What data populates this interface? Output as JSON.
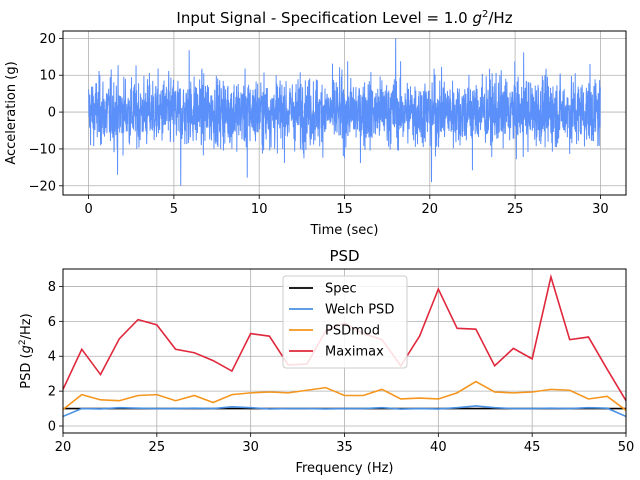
{
  "chart_data": [
    {
      "type": "line",
      "title_main": "Input Signal - Specification Level = 1.0 ",
      "title_unit_base": "g",
      "title_unit_exp": "2",
      "title_unit_tail": "/Hz",
      "xlabel": "Time (sec)",
      "ylabel": "Acceleration (g)",
      "xlim": [
        -1.5,
        31.5
      ],
      "ylim": [
        -22.5,
        22.0
      ],
      "xticks": [
        0,
        5,
        10,
        15,
        20,
        25,
        30
      ],
      "yticks": [
        -20,
        -10,
        0,
        10,
        20
      ],
      "grid": true,
      "color": "#5b8ff9",
      "series": [
        {
          "description": "random vibration time history, 0 to 30 s, mostly within about ±12 g with peaks near ±20 g",
          "x_range": [
            0,
            30
          ],
          "approx_envelope": 12,
          "peaks": [
            {
              "x": 5.4,
              "y": -20.0
            },
            {
              "x": 18.0,
              "y": 20.0
            },
            {
              "x": 20.1,
              "y": -19.0
            },
            {
              "x": 9.3,
              "y": -17.8
            },
            {
              "x": 1.7,
              "y": -17.0
            },
            {
              "x": 5.9,
              "y": 16.8
            },
            {
              "x": 25.5,
              "y": 16.2
            },
            {
              "x": 22.5,
              "y": -15.8
            }
          ]
        }
      ]
    },
    {
      "type": "line",
      "title": "PSD",
      "xlabel": "Frequency (Hz)",
      "ylabel_main": "PSD (",
      "ylabel_base": "g",
      "ylabel_exp": "2",
      "ylabel_tail": "/Hz)",
      "xlim": [
        20,
        50
      ],
      "ylim": [
        -0.4,
        9.0
      ],
      "xticks": [
        20,
        25,
        30,
        35,
        40,
        45,
        50
      ],
      "yticks": [
        0,
        2,
        4,
        6,
        8
      ],
      "grid": true,
      "legend_position": "top-center",
      "x": [
        20,
        21,
        22,
        23,
        24,
        25,
        26,
        27,
        28,
        29,
        30,
        31,
        32,
        33,
        34,
        35,
        36,
        37,
        38,
        39,
        40,
        41,
        42,
        43,
        44,
        45,
        46,
        47,
        48,
        49,
        50
      ],
      "series": [
        {
          "name": "Spec",
          "color": "#000000",
          "values": [
            1.0,
            1.0,
            1.0,
            1.0,
            1.0,
            1.0,
            1.0,
            1.0,
            1.0,
            1.0,
            1.0,
            1.0,
            1.0,
            1.0,
            1.0,
            1.0,
            1.0,
            1.0,
            1.0,
            1.0,
            1.0,
            1.0,
            1.0,
            1.0,
            1.0,
            1.0,
            1.0,
            1.0,
            1.0,
            1.0,
            1.0
          ]
        },
        {
          "name": "Welch PSD",
          "color": "#4a90e2",
          "values": [
            0.55,
            1.0,
            0.98,
            1.05,
            1.02,
            1.0,
            1.0,
            1.02,
            1.0,
            1.1,
            1.05,
            0.98,
            1.0,
            1.0,
            0.98,
            1.0,
            1.0,
            1.05,
            0.97,
            1.0,
            0.98,
            1.05,
            1.15,
            1.05,
            1.0,
            1.0,
            1.02,
            1.0,
            1.05,
            1.02,
            0.55
          ]
        },
        {
          "name": "PSDmod",
          "color": "#f5961e",
          "values": [
            0.95,
            1.8,
            1.5,
            1.45,
            1.75,
            1.8,
            1.45,
            1.75,
            1.35,
            1.8,
            1.9,
            1.95,
            1.9,
            2.05,
            2.2,
            1.75,
            1.75,
            2.1,
            1.55,
            1.6,
            1.55,
            1.9,
            2.55,
            1.95,
            1.9,
            1.95,
            2.1,
            2.05,
            1.55,
            1.7,
            0.9
          ]
        },
        {
          "name": "Maximax",
          "color": "#e0283c",
          "values": [
            2.1,
            4.4,
            2.95,
            5.0,
            6.1,
            5.8,
            4.4,
            4.2,
            3.75,
            3.15,
            5.3,
            5.15,
            3.5,
            3.55,
            5.45,
            5.9,
            5.3,
            4.95,
            3.45,
            5.15,
            7.85,
            5.6,
            5.55,
            3.45,
            4.45,
            3.85,
            8.55,
            4.95,
            5.1,
            3.25,
            1.45
          ]
        }
      ]
    }
  ]
}
